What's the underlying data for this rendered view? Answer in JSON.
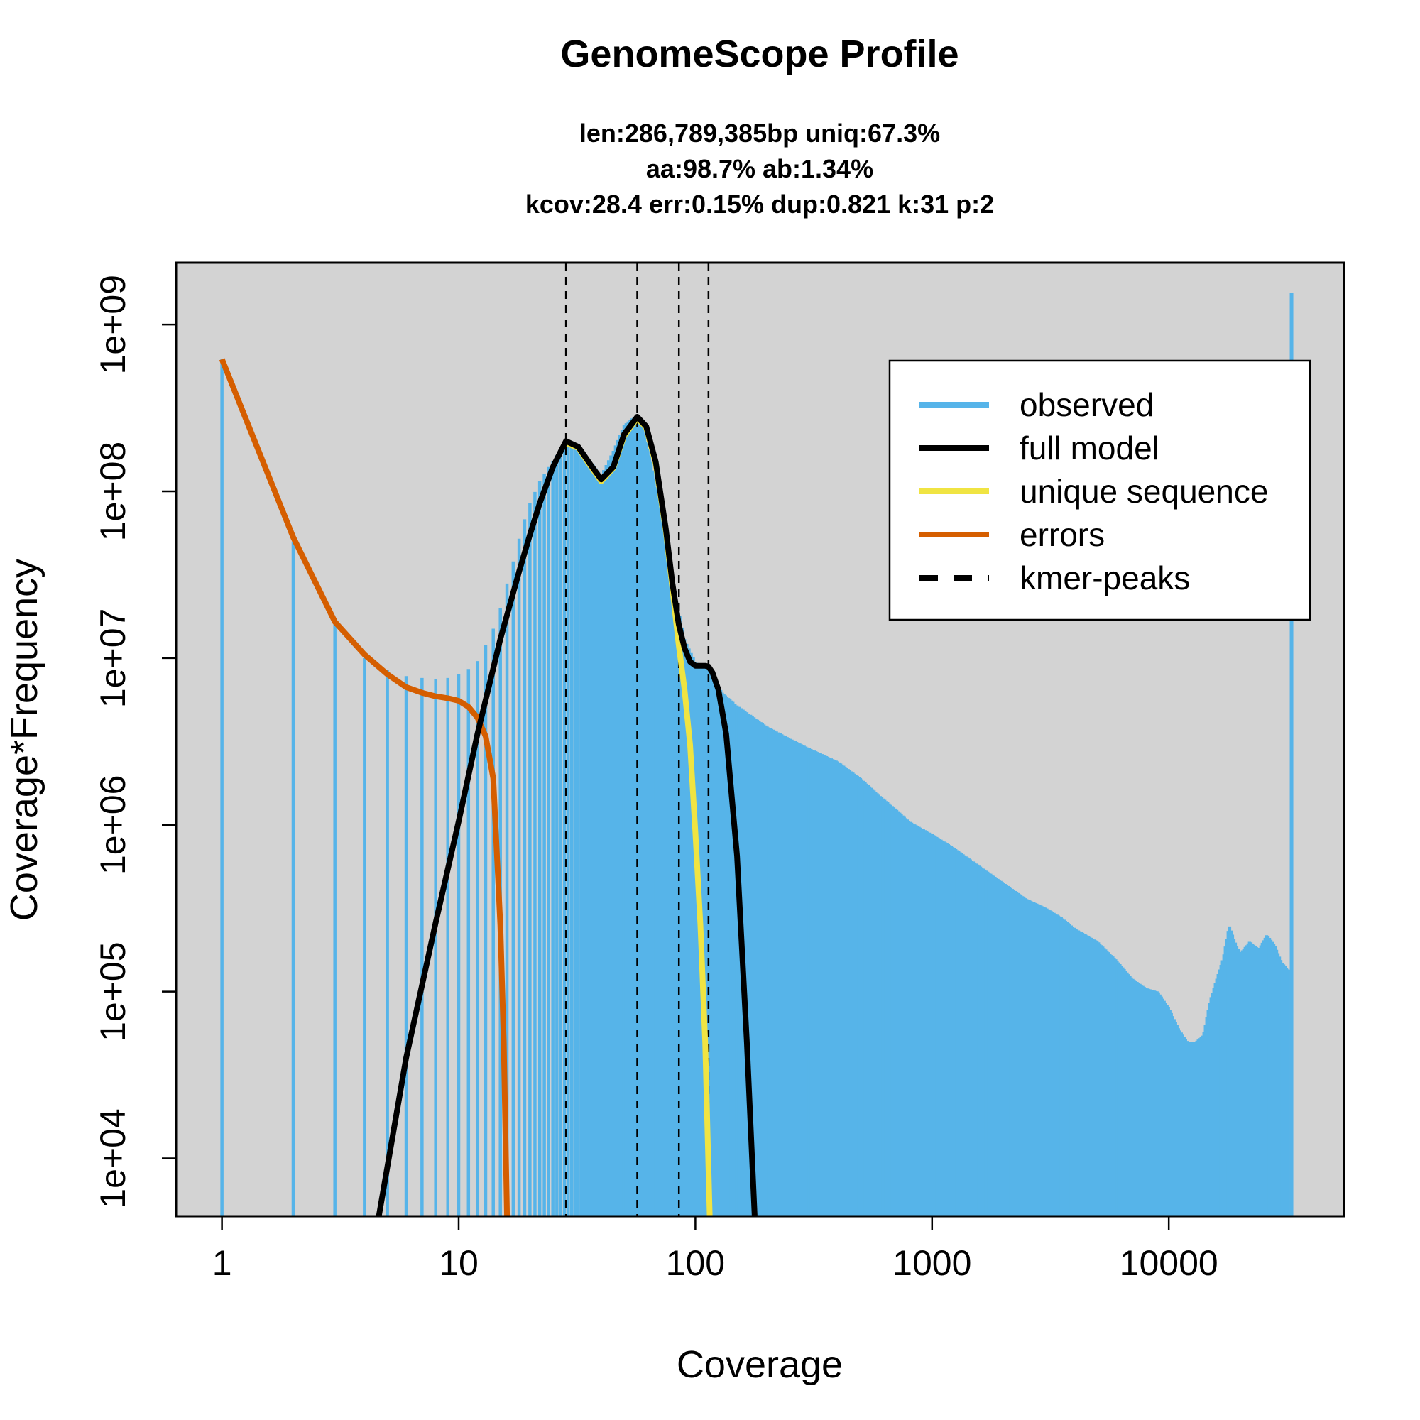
{
  "chart_data": {
    "type": "bar",
    "title": "GenomeScope Profile",
    "subtitle_lines": [
      "len:286,789,385bp uniq:67.3%",
      "aa:98.7% ab:1.34%",
      "kcov:28.4 err:0.15%  dup:0.821  k:31 p:2"
    ],
    "xlabel": "Coverage",
    "ylabel": "Coverage*Frequency",
    "x_scale": "log",
    "y_scale": "log",
    "xlim": [
      0.64,
      55000
    ],
    "ylim": [
      4500,
      2350000000.0
    ],
    "x_ticks": [
      1,
      10,
      100,
      1000,
      10000
    ],
    "x_tick_labels": [
      "1",
      "10",
      "100",
      "1000",
      "10000"
    ],
    "y_ticks": [
      10000,
      100000,
      1000000,
      10000000,
      100000000,
      1000000000
    ],
    "y_tick_labels": [
      "1e+04",
      "1e+05",
      "1e+06",
      "1e+07",
      "1e+08",
      "1e+09"
    ],
    "background": "#d3d3d3",
    "colors": {
      "observed": "#56b4e9",
      "full_model": "#000000",
      "unique_sequence": "#f0e442",
      "errors": "#d55e00",
      "kmer_peaks": "#000000"
    },
    "legend": {
      "position": "top-right",
      "entries": [
        {
          "label": "observed",
          "color": "#56b4e9",
          "style": "solid"
        },
        {
          "label": "full model",
          "color": "#000000",
          "style": "solid"
        },
        {
          "label": "unique sequence",
          "color": "#f0e442",
          "style": "solid"
        },
        {
          "label": "errors",
          "color": "#d55e00",
          "style": "solid"
        },
        {
          "label": "kmer-peaks",
          "color": "#000000",
          "style": "dashed"
        }
      ]
    },
    "kmer_peaks": [
      28.4,
      56.8,
      85.2,
      113.6
    ],
    "observed": {
      "x": [
        1,
        2,
        3,
        4,
        5,
        6,
        7,
        8,
        9,
        10,
        11,
        12,
        13,
        14,
        15,
        16,
        17,
        18,
        19,
        20,
        22,
        24,
        26,
        28,
        30,
        35,
        40,
        45,
        50,
        55,
        60,
        65,
        70,
        80,
        90,
        100,
        110,
        120,
        130,
        150,
        170,
        200,
        250,
        300,
        400,
        500,
        600,
        700,
        800,
        1000,
        1200,
        1500,
        2000,
        2500,
        3000,
        3500,
        4000,
        5000,
        6000,
        7000,
        8000,
        9000,
        10000,
        11000,
        12000,
        13000,
        14000,
        15000,
        17000,
        18000,
        19000,
        20000,
        22000,
        24000,
        26000,
        28000,
        30000,
        32000
      ],
      "y": [
        620000000.0,
        50000000.0,
        16000000.0,
        10000000.0,
        8500000.0,
        7800000.0,
        7600000.0,
        7500000.0,
        7600000.0,
        8000000.0,
        8600000.0,
        9600000.0,
        12000000.0,
        15000000.0,
        20000000.0,
        28000000.0,
        38000000.0,
        52000000.0,
        68000000.0,
        85000000.0,
        115000000.0,
        140000000.0,
        165000000.0,
        190000000.0,
        195000000.0,
        160000000.0,
        125000000.0,
        175000000.0,
        250000000.0,
        280000000.0,
        240000000.0,
        150000000.0,
        85000000.0,
        30000000.0,
        13000000.0,
        9500000.0,
        8800000.0,
        7500000.0,
        6200000.0,
        5200000.0,
        4600000.0,
        3900000.0,
        3300000.0,
        2900000.0,
        2400000.0,
        1900000.0,
        1500000.0,
        1250000.0,
        1050000.0,
        880000.0,
        750000.0,
        600000.0,
        450000.0,
        360000.0,
        320000.0,
        280000.0,
        240000.0,
        200000.0,
        155000.0,
        120000.0,
        105000.0,
        100000.0,
        80000.0,
        60000.0,
        50000.0,
        50000.0,
        55000.0,
        90000.0,
        160000.0,
        250000.0,
        200000.0,
        170000.0,
        200000.0,
        180000.0,
        220000.0,
        190000.0,
        150000.0,
        135000.0
      ]
    },
    "observed_last": {
      "x": 33000,
      "y": 1550000000.0
    },
    "full_model": {
      "x": [
        4.6,
        6,
        8,
        10,
        12,
        15,
        18,
        20,
        22,
        25,
        28.4,
        32,
        36,
        40,
        45,
        50,
        56.8,
        62,
        68,
        75,
        80,
        85,
        90,
        95,
        100,
        105,
        110,
        113.6,
        118,
        125,
        135,
        150,
        165,
        178
      ],
      "y": [
        4500,
        40000.0,
        260000.0,
        1050000.0,
        3500000.0,
        13000000.0,
        33000000.0,
        55000000.0,
        85000000.0,
        140000000.0,
        200000000.0,
        185000000.0,
        145000000.0,
        118000000.0,
        140000000.0,
        220000000.0,
        280000000.0,
        245000000.0,
        150000000.0,
        60000000.0,
        28000000.0,
        16000000.0,
        11500000.0,
        9500000.0,
        9000000.0,
        9000000.0,
        9000000.0,
        8900000.0,
        8200000.0,
        6500000.0,
        3500000.0,
        650000.0,
        50000.0,
        4500
      ]
    },
    "unique_sequence": {
      "x": [
        28.4,
        32,
        36,
        40,
        45,
        50,
        56.8,
        62,
        68,
        75,
        80,
        85,
        90,
        95,
        100,
        105,
        110,
        115
      ],
      "y": [
        195000000.0,
        182000000.0,
        142000000.0,
        115000000.0,
        138000000.0,
        215000000.0,
        275000000.0,
        240000000.0,
        145000000.0,
        58000000.0,
        26000000.0,
        12000000.0,
        6500000.0,
        3000000.0,
        900000.0,
        250000.0,
        50000.0,
        4500
      ]
    },
    "errors": {
      "x": [
        1,
        2,
        3,
        4,
        5,
        6,
        7,
        8,
        9,
        10,
        11,
        12,
        13,
        14,
        15,
        15.5,
        16
      ],
      "y": [
        620000000.0,
        53000000.0,
        16500000.0,
        10500000.0,
        8000000.0,
        6700000.0,
        6200000.0,
        5900000.0,
        5750000.0,
        5550000.0,
        5100000.0,
        4400000.0,
        3400000.0,
        1900000.0,
        250000.0,
        50000.0,
        4500
      ]
    }
  }
}
